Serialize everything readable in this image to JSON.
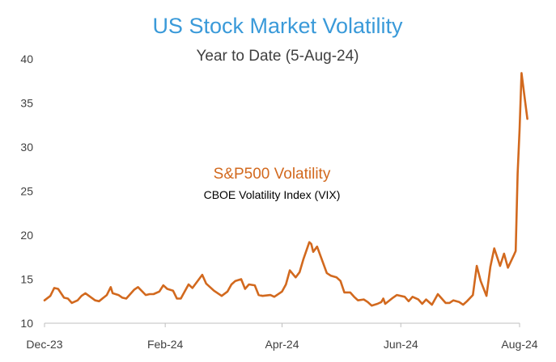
{
  "chart_data": {
    "type": "line",
    "title": "US Stock Market Volatility",
    "subtitle": "Year to Date (5-Aug-24)",
    "xlabel": "",
    "ylabel": "",
    "ylim": [
      10,
      40
    ],
    "yticks": [
      10,
      15,
      20,
      25,
      30,
      35,
      40
    ],
    "xlim": [
      "2023-12-01",
      "2024-08-01"
    ],
    "xticks": [
      {
        "date": "2023-12-01",
        "label": "Dec-23"
      },
      {
        "date": "2024-02-01",
        "label": "Feb-24"
      },
      {
        "date": "2024-04-01",
        "label": "Apr-24"
      },
      {
        "date": "2024-06-01",
        "label": "Jun-24"
      },
      {
        "date": "2024-08-01",
        "label": "Aug-24"
      }
    ],
    "grid": false,
    "annotation": {
      "title": "S&P500 Volatility",
      "subtitle": "CBOE Volatility Index (VIX)"
    },
    "colors": {
      "title": "#3a9ad9",
      "subtitle": "#404040",
      "series": "#d2691e",
      "axis": "#bfbfbf",
      "tick_text": "#404040"
    },
    "series": [
      {
        "x": [
          "2023-12-01",
          "2023-12-04",
          "2023-12-06",
          "2023-12-08",
          "2023-12-11",
          "2023-12-13",
          "2023-12-15",
          "2023-12-18",
          "2023-12-20",
          "2023-12-22",
          "2023-12-27",
          "2023-12-29",
          "2024-01-02",
          "2024-01-04",
          "2024-01-05",
          "2024-01-08",
          "2024-01-10",
          "2024-01-12",
          "2024-01-16",
          "2024-01-18",
          "2024-01-22",
          "2024-01-24",
          "2024-01-26",
          "2024-01-29",
          "2024-01-31",
          "2024-02-02",
          "2024-02-05",
          "2024-02-07",
          "2024-02-09",
          "2024-02-13",
          "2024-02-15",
          "2024-02-20",
          "2024-02-22",
          "2024-02-26",
          "2024-02-28",
          "2024-03-01",
          "2024-03-04",
          "2024-03-06",
          "2024-03-08",
          "2024-03-11",
          "2024-03-13",
          "2024-03-15",
          "2024-03-18",
          "2024-03-20",
          "2024-03-22",
          "2024-03-26",
          "2024-03-28",
          "2024-04-01",
          "2024-04-03",
          "2024-04-05",
          "2024-04-08",
          "2024-04-10",
          "2024-04-12",
          "2024-04-15",
          "2024-04-16",
          "2024-04-17",
          "2024-04-19",
          "2024-04-22",
          "2024-04-24",
          "2024-04-26",
          "2024-04-29",
          "2024-05-01",
          "2024-05-03",
          "2024-05-06",
          "2024-05-08",
          "2024-05-10",
          "2024-05-13",
          "2024-05-15",
          "2024-05-17",
          "2024-05-20",
          "2024-05-22",
          "2024-05-23",
          "2024-05-24",
          "2024-05-28",
          "2024-05-30",
          "2024-06-03",
          "2024-06-05",
          "2024-06-07",
          "2024-06-10",
          "2024-06-12",
          "2024-06-14",
          "2024-06-17",
          "2024-06-20",
          "2024-06-24",
          "2024-06-26",
          "2024-06-28",
          "2024-07-01",
          "2024-07-03",
          "2024-07-05",
          "2024-07-08",
          "2024-07-10",
          "2024-07-12",
          "2024-07-15",
          "2024-07-17",
          "2024-07-19",
          "2024-07-22",
          "2024-07-24",
          "2024-07-26",
          "2024-07-29",
          "2024-07-30",
          "2024-07-31",
          "2024-08-01",
          "2024-08-02",
          "2024-08-05"
        ],
        "values": [
          12.6,
          13.1,
          14.0,
          13.9,
          12.9,
          12.8,
          12.3,
          12.6,
          13.1,
          13.4,
          12.6,
          12.5,
          13.2,
          14.1,
          13.4,
          13.2,
          12.9,
          12.8,
          13.8,
          14.1,
          13.2,
          13.3,
          13.3,
          13.6,
          14.3,
          13.9,
          13.7,
          12.8,
          12.8,
          14.4,
          14.0,
          15.5,
          14.5,
          13.7,
          13.4,
          13.1,
          13.6,
          14.4,
          14.8,
          15.0,
          13.9,
          14.4,
          14.3,
          13.2,
          13.1,
          13.2,
          13.0,
          13.6,
          14.4,
          16.0,
          15.2,
          15.8,
          17.3,
          19.2,
          19.0,
          18.1,
          18.7,
          16.9,
          15.7,
          15.4,
          15.2,
          14.8,
          13.5,
          13.5,
          13.0,
          12.6,
          12.7,
          12.4,
          12.0,
          12.2,
          12.4,
          12.8,
          12.2,
          12.9,
          13.2,
          13.0,
          12.5,
          13.0,
          12.7,
          12.2,
          12.7,
          12.1,
          13.3,
          12.3,
          12.3,
          12.6,
          12.4,
          12.1,
          12.5,
          13.2,
          16.5,
          14.8,
          13.1,
          16.4,
          18.5,
          16.5,
          17.9,
          16.3,
          17.7,
          18.2,
          27.0,
          32.0,
          38.4,
          33.2
        ]
      }
    ]
  }
}
